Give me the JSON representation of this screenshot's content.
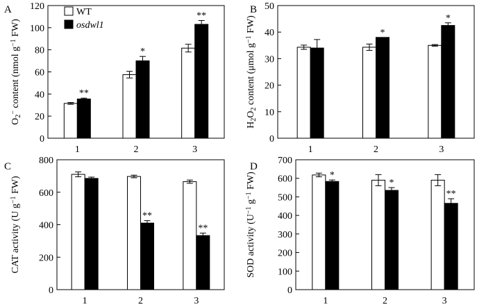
{
  "legend": [
    {
      "label": "WT",
      "fill": "#ffffff"
    },
    {
      "label": "osdwl1",
      "fill": "#000000",
      "italic": true
    }
  ],
  "chart_data": [
    {
      "type": "bar",
      "panel": "A",
      "categories": [
        "1",
        "2",
        "3"
      ],
      "ylabel": {
        "parts": [
          {
            "t": "O"
          },
          {
            "t": "2",
            "sub": true
          },
          {
            "t": "−",
            "sup": true
          },
          {
            "t": " content (nmol g"
          },
          {
            "t": "−1",
            "sup": true
          },
          {
            "t": " FW)"
          }
        ]
      },
      "ylim": [
        0,
        120
      ],
      "yticks": [
        0,
        20,
        40,
        60,
        80,
        100,
        120
      ],
      "series": [
        {
          "name": "WT",
          "values": [
            31.5,
            57.5,
            81.5
          ],
          "errors": [
            0.8,
            3,
            3.5
          ],
          "fill": "#ffffff"
        },
        {
          "name": "osdwl1",
          "values": [
            35.5,
            70,
            103
          ],
          "errors": [
            0.8,
            4,
            3.5
          ],
          "fill": "#000000"
        }
      ],
      "annotations": [
        "**",
        "*",
        "**"
      ]
    },
    {
      "type": "bar",
      "panel": "B",
      "categories": [
        "1",
        "2",
        "3"
      ],
      "ylabel": {
        "parts": [
          {
            "t": "H"
          },
          {
            "t": "2",
            "sub": true
          },
          {
            "t": "O"
          },
          {
            "t": "2",
            "sub": true
          },
          {
            "t": " content (μmol g"
          },
          {
            "t": "−1",
            "sup": true
          },
          {
            "t": " FW)"
          }
        ]
      },
      "ylim": [
        0,
        50
      ],
      "yticks": [
        0,
        10,
        20,
        30,
        40,
        50
      ],
      "series": [
        {
          "name": "WT",
          "values": [
            34.3,
            34.3,
            35
          ],
          "errors": [
            0.8,
            1.2,
            0.3
          ],
          "fill": "#ffffff"
        },
        {
          "name": "osdwl1",
          "values": [
            34,
            38,
            42.5
          ],
          "errors": [
            3.2,
            0,
            1
          ],
          "fill": "#000000"
        }
      ],
      "annotations": [
        "",
        "*",
        "*"
      ]
    },
    {
      "type": "bar",
      "panel": "C",
      "categories": [
        "1",
        "2",
        "3"
      ],
      "ylabel": {
        "parts": [
          {
            "t": "CAT activity (U g"
          },
          {
            "t": "−1",
            "sup": true
          },
          {
            "t": " FW)"
          }
        ]
      },
      "ylim": [
        0,
        800
      ],
      "yticks": [
        0,
        200,
        400,
        600,
        800
      ],
      "series": [
        {
          "name": "WT",
          "values": [
            710,
            697,
            665
          ],
          "errors": [
            15,
            8,
            10
          ],
          "fill": "#ffffff"
        },
        {
          "name": "osdwl1",
          "values": [
            685,
            410,
            333
          ],
          "errors": [
            8,
            15,
            15
          ],
          "fill": "#000000"
        }
      ],
      "annotations": [
        "",
        "**",
        "**"
      ]
    },
    {
      "type": "bar",
      "panel": "D",
      "categories": [
        "1",
        "2",
        "3"
      ],
      "ylabel": {
        "parts": [
          {
            "t": "SOD activity (U"
          },
          {
            "t": "−1",
            "sup": true
          },
          {
            "t": " g"
          },
          {
            "t": "−1",
            "sup": true
          },
          {
            "t": " FW)"
          }
        ]
      },
      "ylim": [
        0,
        700
      ],
      "yticks": [
        0,
        100,
        200,
        300,
        400,
        500,
        600,
        700
      ],
      "series": [
        {
          "name": "WT",
          "values": [
            618,
            590,
            590
          ],
          "errors": [
            10,
            30,
            30
          ],
          "fill": "#ffffff"
        },
        {
          "name": "osdwl1",
          "values": [
            583,
            535,
            465
          ],
          "errors": [
            8,
            15,
            25
          ],
          "fill": "#000000"
        }
      ],
      "annotations": [
        "*",
        "*",
        "**"
      ]
    }
  ]
}
